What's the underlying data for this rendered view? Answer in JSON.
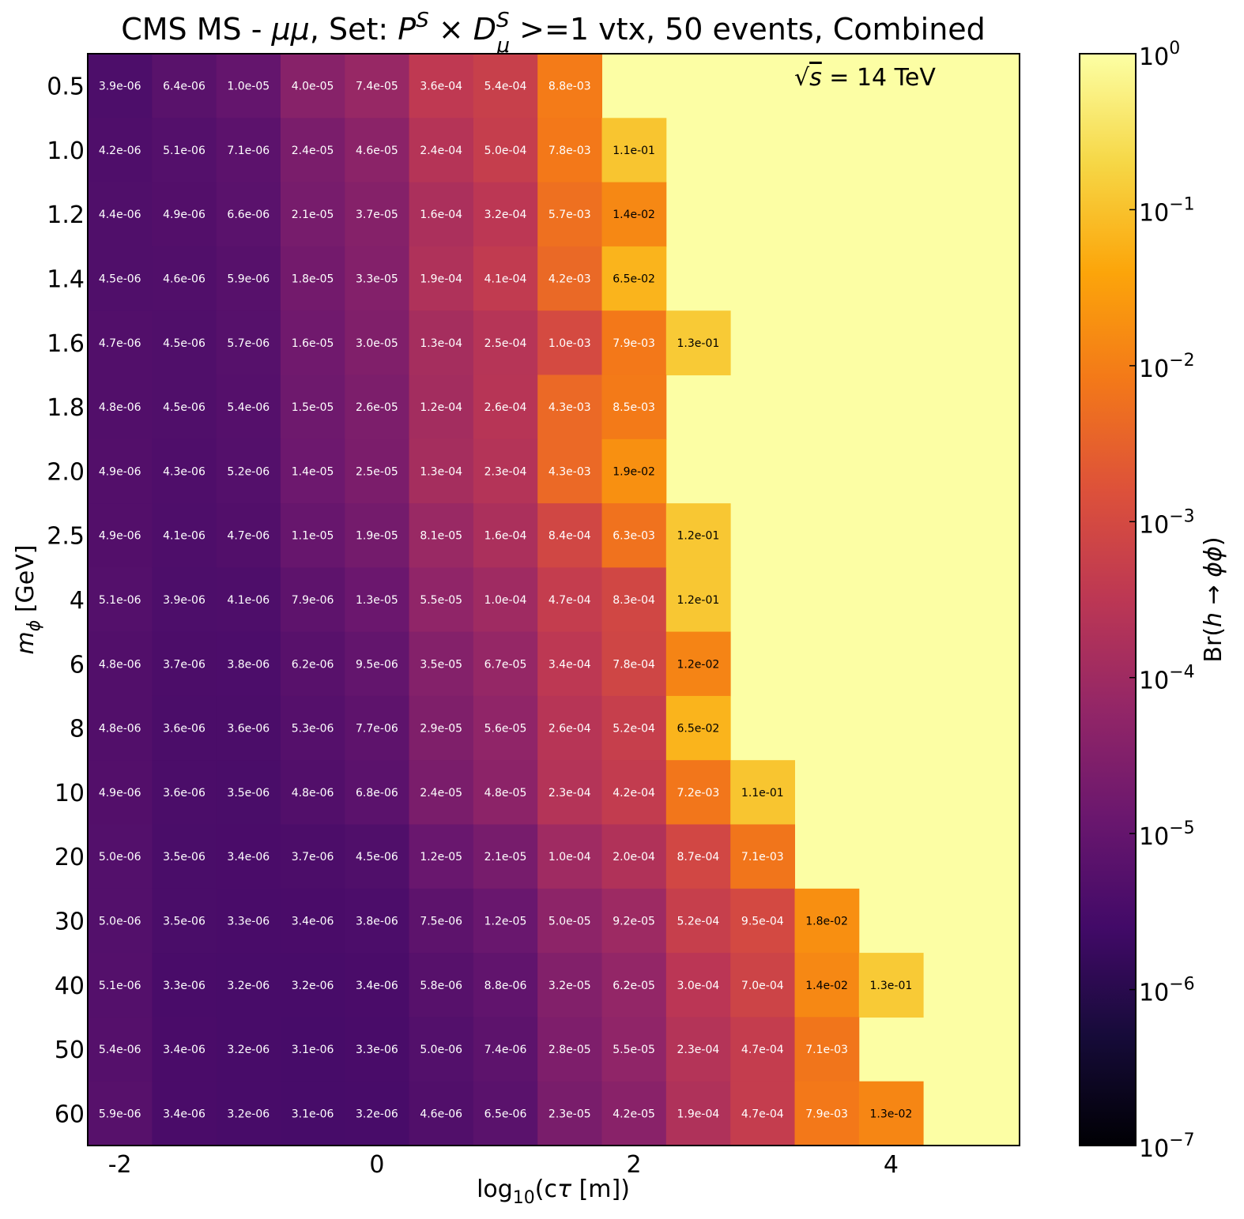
{
  "chart_data": {
    "type": "heatmap",
    "title": "CMS MS - μμ, Set: P^S × D^S_μ >=1 vtx, 50 events, Combined",
    "title_parts": {
      "prefix": "CMS MS - ",
      "mumu": "μμ",
      "set": ", Set: ",
      "P": "P",
      "S_sup": "S",
      "times": " × ",
      "D": "D",
      "D_sup": "S",
      "D_sub": "μ",
      "suffix": " >=1 vtx, 50 events, Combined"
    },
    "annotation": "√s = 14 TeV",
    "annotation_parts": {
      "sqrt": "√",
      "s": "s",
      "rest": " = 14 TeV"
    },
    "xlabel": "log₁₀(cτ [m])",
    "xlabel_parts": {
      "pre": "log",
      "sub": "10",
      "post1": "(c",
      "tau": "τ",
      "post2": " [m])"
    },
    "ylabel": "m_ϕ [GeV]",
    "ylabel_parts": {
      "m": "m",
      "sub": "ϕ",
      "rest": " [GeV]"
    },
    "colorbar_label": "Br(h → ϕϕ)",
    "colorbar_label_parts": {
      "pre": "Br(",
      "h": "h",
      "arrow": " → ",
      "phi": "ϕϕ",
      "post": ")"
    },
    "colorbar": {
      "scale": "log",
      "colormap": "inferno",
      "range": [
        1e-07,
        1
      ],
      "tick_values": [
        1e-07,
        1e-06,
        1e-05,
        0.0001,
        0.001,
        0.01,
        0.1,
        1
      ],
      "tick_exponents": [
        "−7",
        "−6",
        "−5",
        "−4",
        "−3",
        "−2",
        "−1",
        "0"
      ],
      "tick_base": "10"
    },
    "x_ticks": [
      "-2",
      "0",
      "2",
      "4"
    ],
    "x_tick_values": [
      -2,
      0,
      2,
      4
    ],
    "x_range": [
      -2.25,
      5.0
    ],
    "x_centers": [
      -2.0,
      -1.5,
      -1.0,
      -0.5,
      0.0,
      0.5,
      1.0,
      1.5,
      2.0,
      2.5,
      3.0,
      3.5,
      4.0,
      4.5,
      5.0
    ],
    "y_categories": [
      "0.5",
      "1.0",
      "1.2",
      "1.4",
      "1.6",
      "1.8",
      "2.0",
      "2.5",
      "4",
      "6",
      "8",
      "10",
      "20",
      "30",
      "40",
      "50",
      "60"
    ],
    "fill_value": 1,
    "fill_color": "#fcfea4",
    "values": [
      [
        "3.9e-06",
        "6.4e-06",
        "1.0e-05",
        "4.0e-05",
        "7.4e-05",
        "3.6e-04",
        "5.4e-04",
        "8.8e-03"
      ],
      [
        "4.2e-06",
        "5.1e-06",
        "7.1e-06",
        "2.4e-05",
        "4.6e-05",
        "2.4e-04",
        "5.0e-04",
        "7.8e-03",
        "1.1e-01"
      ],
      [
        "4.4e-06",
        "4.9e-06",
        "6.6e-06",
        "2.1e-05",
        "3.7e-05",
        "1.6e-04",
        "3.2e-04",
        "5.7e-03",
        "1.4e-02"
      ],
      [
        "4.5e-06",
        "4.6e-06",
        "5.9e-06",
        "1.8e-05",
        "3.3e-05",
        "1.9e-04",
        "4.1e-04",
        "4.2e-03",
        "6.5e-02"
      ],
      [
        "4.7e-06",
        "4.5e-06",
        "5.7e-06",
        "1.6e-05",
        "3.0e-05",
        "1.3e-04",
        "2.5e-04",
        "1.0e-03",
        "7.9e-03",
        "1.3e-01"
      ],
      [
        "4.8e-06",
        "4.5e-06",
        "5.4e-06",
        "1.5e-05",
        "2.6e-05",
        "1.2e-04",
        "2.6e-04",
        "4.3e-03",
        "8.5e-03"
      ],
      [
        "4.9e-06",
        "4.3e-06",
        "5.2e-06",
        "1.4e-05",
        "2.5e-05",
        "1.3e-04",
        "2.3e-04",
        "4.3e-03",
        "1.9e-02"
      ],
      [
        "4.9e-06",
        "4.1e-06",
        "4.7e-06",
        "1.1e-05",
        "1.9e-05",
        "8.1e-05",
        "1.6e-04",
        "8.4e-04",
        "6.3e-03",
        "1.2e-01"
      ],
      [
        "5.1e-06",
        "3.9e-06",
        "4.1e-06",
        "7.9e-06",
        "1.3e-05",
        "5.5e-05",
        "1.0e-04",
        "4.7e-04",
        "8.3e-04",
        "1.2e-01"
      ],
      [
        "4.8e-06",
        "3.7e-06",
        "3.8e-06",
        "6.2e-06",
        "9.5e-06",
        "3.5e-05",
        "6.7e-05",
        "3.4e-04",
        "7.8e-04",
        "1.2e-02"
      ],
      [
        "4.8e-06",
        "3.6e-06",
        "3.6e-06",
        "5.3e-06",
        "7.7e-06",
        "2.9e-05",
        "5.6e-05",
        "2.6e-04",
        "5.2e-04",
        "6.5e-02"
      ],
      [
        "4.9e-06",
        "3.6e-06",
        "3.5e-06",
        "4.8e-06",
        "6.8e-06",
        "2.4e-05",
        "4.8e-05",
        "2.3e-04",
        "4.2e-04",
        "7.2e-03",
        "1.1e-01"
      ],
      [
        "5.0e-06",
        "3.5e-06",
        "3.4e-06",
        "3.7e-06",
        "4.5e-06",
        "1.2e-05",
        "2.1e-05",
        "1.0e-04",
        "2.0e-04",
        "8.7e-04",
        "7.1e-03"
      ],
      [
        "5.0e-06",
        "3.5e-06",
        "3.3e-06",
        "3.4e-06",
        "3.8e-06",
        "7.5e-06",
        "1.2e-05",
        "5.0e-05",
        "9.2e-05",
        "5.2e-04",
        "9.5e-04",
        "1.8e-02"
      ],
      [
        "5.1e-06",
        "3.3e-06",
        "3.2e-06",
        "3.2e-06",
        "3.4e-06",
        "5.8e-06",
        "8.8e-06",
        "3.2e-05",
        "6.2e-05",
        "3.0e-04",
        "7.0e-04",
        "1.4e-02",
        "1.3e-01"
      ],
      [
        "5.4e-06",
        "3.4e-06",
        "3.2e-06",
        "3.1e-06",
        "3.3e-06",
        "5.0e-06",
        "7.4e-06",
        "2.8e-05",
        "5.5e-05",
        "2.3e-04",
        "4.7e-04",
        "7.1e-03"
      ],
      [
        "5.9e-06",
        "3.4e-06",
        "3.2e-06",
        "3.1e-06",
        "3.2e-06",
        "4.6e-06",
        "6.5e-06",
        "2.3e-05",
        "4.2e-05",
        "1.9e-04",
        "4.7e-04",
        "7.9e-03",
        "1.3e-02"
      ]
    ]
  }
}
